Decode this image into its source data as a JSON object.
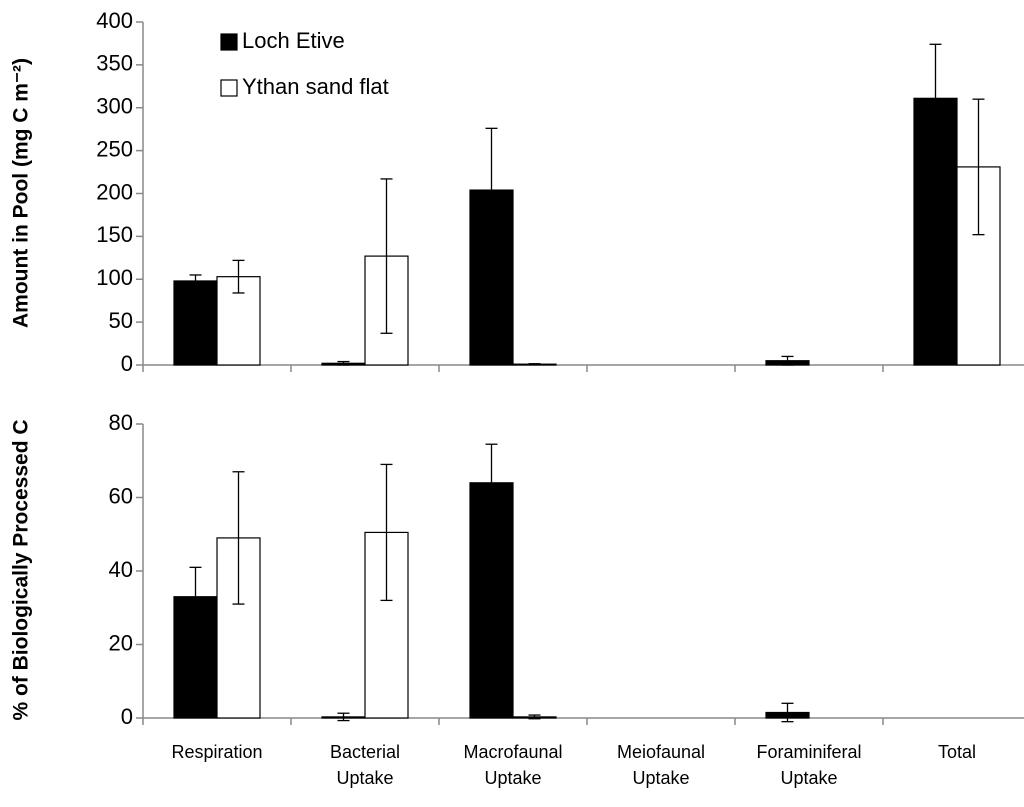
{
  "chart_data": [
    {
      "type": "bar",
      "y_label": "Amount in Pool (mg C m⁻²)",
      "ylim": [
        0,
        400
      ],
      "yticks": [
        0,
        50,
        100,
        150,
        200,
        250,
        300,
        350,
        400
      ],
      "grid": false,
      "legend": "top-left",
      "series": [
        {
          "name": "Loch Etive",
          "color": "#000000",
          "values": [
            98,
            2,
            204,
            null,
            5,
            311
          ],
          "errors": [
            7,
            2,
            72,
            null,
            5,
            63
          ]
        },
        {
          "name": "Ythan sand flat",
          "color": "#ffffff",
          "values": [
            103,
            127,
            1,
            null,
            null,
            231
          ],
          "errors": [
            19,
            90,
            0.5,
            null,
            null,
            79
          ]
        }
      ]
    },
    {
      "type": "bar",
      "y_label": "% of Biologically Processed C",
      "categories": [
        "Respiration",
        "Bacterial Uptake",
        "Macrofaunal Uptake",
        "Meiofaunal Uptake",
        "Foraminiferal Uptake",
        "Total"
      ],
      "ylim": [
        0,
        80
      ],
      "yticks": [
        0,
        20,
        40,
        60,
        80
      ],
      "grid": false,
      "series": [
        {
          "color": "#000000",
          "values": [
            33,
            0.3,
            64,
            null,
            1.5,
            null
          ],
          "errors": [
            8,
            1,
            10.5,
            null,
            2.5,
            null
          ]
        },
        {
          "color": "#ffffff",
          "values": [
            49,
            50.5,
            0.3,
            null,
            null,
            null
          ],
          "errors": [
            18,
            18.5,
            0.5,
            null,
            null,
            null
          ]
        }
      ]
    }
  ]
}
